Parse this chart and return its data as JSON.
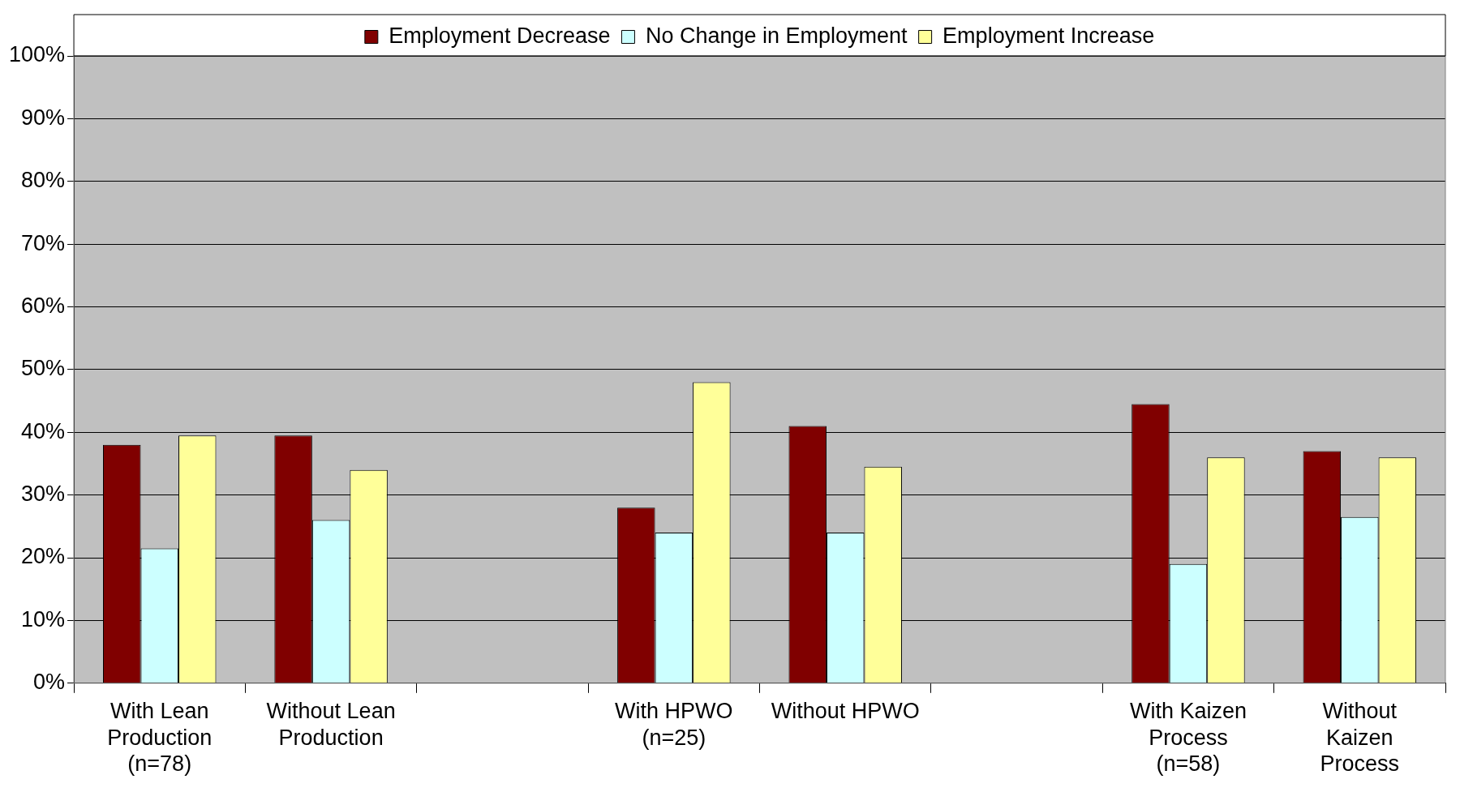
{
  "chart_data": {
    "type": "bar",
    "categories": [
      "With Lean Production (n=78)",
      "Without Lean Production",
      null,
      "With HPWO (n=25)",
      "Without HPWO",
      null,
      "With Kaizen Process (n=58)",
      "Without Kaizen Process"
    ],
    "series": [
      {
        "name": "Employment Decrease",
        "color": "#800000",
        "values": [
          38,
          39.5,
          null,
          28,
          41,
          null,
          44.5,
          37
        ]
      },
      {
        "name": "No Change in Employment",
        "color": "#ccffff",
        "values": [
          21.5,
          26,
          null,
          24,
          24,
          null,
          19,
          26.5
        ]
      },
      {
        "name": "Employment Increase",
        "color": "#ffff99",
        "values": [
          39.5,
          34,
          null,
          48,
          34.5,
          null,
          36,
          36
        ]
      }
    ],
    "ylim": [
      0,
      100
    ],
    "yticks": [
      {
        "value": 0,
        "label": "0%"
      },
      {
        "value": 10,
        "label": "10%"
      },
      {
        "value": 20,
        "label": "20%"
      },
      {
        "value": 30,
        "label": "30%"
      },
      {
        "value": 40,
        "label": "40%"
      },
      {
        "value": 50,
        "label": "50%"
      },
      {
        "value": 60,
        "label": "60%"
      },
      {
        "value": 70,
        "label": "70%"
      },
      {
        "value": 80,
        "label": "80%"
      },
      {
        "value": 90,
        "label": "90%"
      },
      {
        "value": 100,
        "label": "100%"
      }
    ],
    "grid": "y",
    "legend": "top"
  }
}
